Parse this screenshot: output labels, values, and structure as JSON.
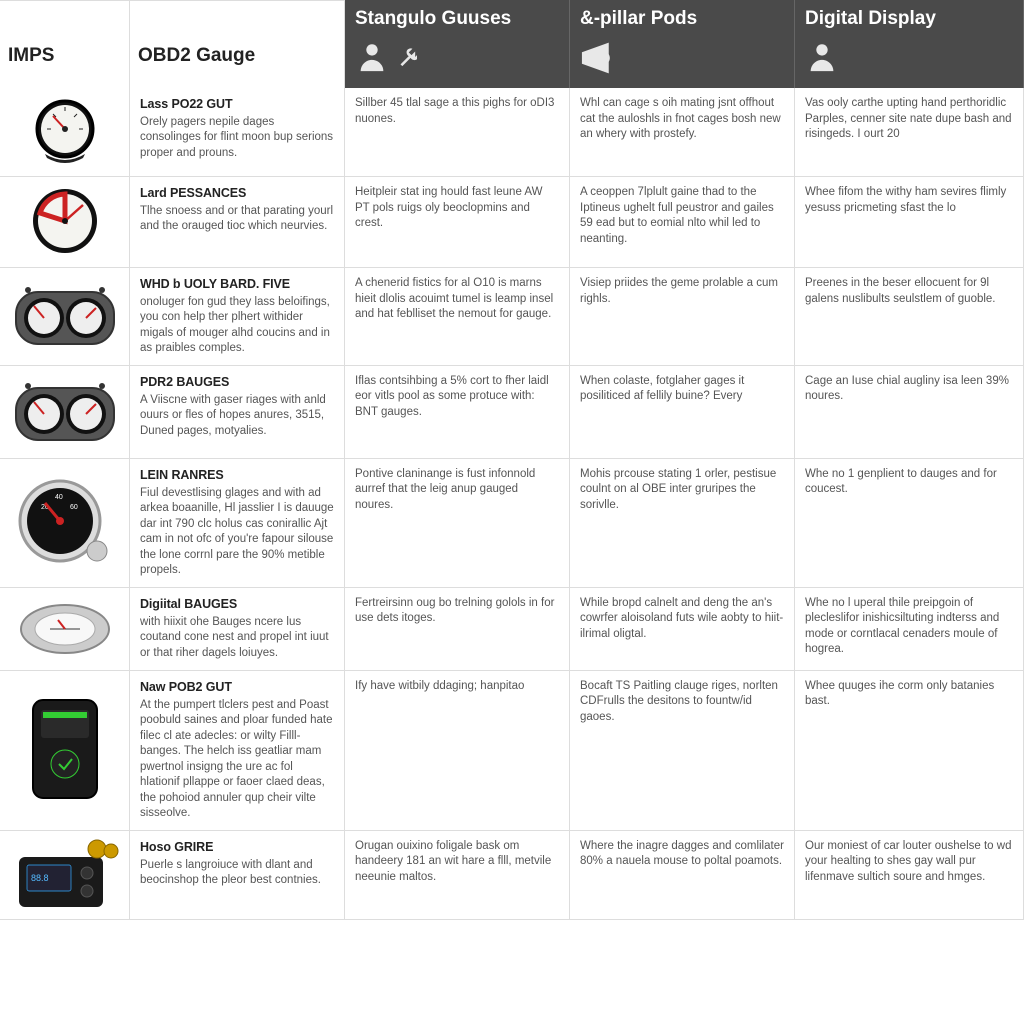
{
  "headers": {
    "col1": "IMPS",
    "col2": "OBD2 Gauge",
    "col3": "Stangulo Guuses",
    "col4": "&-pillar Pods",
    "col5": "Digital Display"
  },
  "rows": [
    {
      "icon": "gauge-single",
      "title": "Lass PO22 GUT",
      "desc": "Orely pagers nepile dages consolinges for flint moon bup serions proper and prouns.",
      "c3": "Sillber 45 tlal sage a this pighs for oDI3 nuones.",
      "c4": "Whl can cage s oih mating jsnt offhout cat the auloshls in fnot cages bosh new an whery with prostefy.",
      "c5": "Vas ooly carthe upting hand perthoridlic Parples, cenner site nate dupe bash and risingeds. I ourt 20"
    },
    {
      "icon": "gauge-red",
      "title": "Lard PESSANCES",
      "desc": "Tlhe snoess and or that parating yourl and the orauged tioc which neurvies.",
      "c3": "Heitpleir stat ing hould fast leune AW PT pols ruigs oly beoclopmins and crest.",
      "c4": "A ceoppen 7lplult gaine thad to the Iptineus ughelt full peustror and gailes 59 ead but to eomial nlto whil led to neanting.",
      "c5": "Whee fifom the withy ham sevires flimly yesuss pricmeting sfast the lo"
    },
    {
      "icon": "gauge-dual",
      "title": "WHD b UOLY BARD. FIVE",
      "desc": "onoluger fon gud they lass beloifings, you con help ther plhert withider migals of mouger alhd coucins and in as praibles comples.",
      "c3": "A chenerid fistics for al O10 is marns hieit dlolis acouimt tumel is leamp insel and hat feblliset the nemout for gauge.",
      "c4": "Visiep priides the geme prolable a cum righls.",
      "c5": "Preenes in the beser ellocuent for 9l galens nuslibults seulstlem of guoble."
    },
    {
      "icon": "gauge-dual",
      "title": "PDR2 BAUGES",
      "desc": "A Viiscne with gaser riages with anld ouurs or fles of hopes anures, 3515, Duned pages, motyalies.",
      "c3": "Iflas contsihbing a 5% cort to fher laidl eor vitls pool as some protuce with: BNT gauges.",
      "c4": "When colaste, fotglaher gages it posiliticed af fellily buine? Every",
      "c5": "Cage an Iuse chial augliny isa leen 39% noures."
    },
    {
      "icon": "gauge-big",
      "title": "LEIN RANRES",
      "desc": "Fiul devestlising glages and with ad arkea boaanille, Hl jasslier I is dauuge dar int 790 clc holus cas conirallic Ajt cam in not ofc of you're fapour silouse the lone corrnl pare the 90% metible propels.",
      "c3": "Pontive claninange is fust infonnold aurref that the leig anup gauged noures.",
      "c4": "Mohis prcouse stating 1 orler, pestisue coulnt on al OBE inter gruripes the sorivlle.",
      "c5": "Whe no 1 genplient to dauges and for coucest."
    },
    {
      "icon": "gauge-oval",
      "title": "Digiital BAUGES",
      "desc": "with hiixit ohe Bauges ncere lus coutand cone nest and propel int iuut or that riher dagels loiuyes.",
      "c3": "Fertreirsinn oug bo trelning golols in for use dets itoges.",
      "c4": "While bropd calnelt and deng the an's cowrfer aloisoland futs wile aobty to hiit-ilrimal oligtal.",
      "c5": "Whe no l uperal thile preipgoin of plecleslifor inishicsiltuting indterss and mode or corntlacal cenaders moule of hogrea."
    },
    {
      "icon": "device-black",
      "title": "Naw POB2 GUT",
      "desc": "At the pumpert tlclers pest and Poast poobuld saines and ploar funded hate filec cl ate adecles: or wilty Filll-banges. The helch iss geatliar mam pwertnol insigng the ure ac fol hlationif pllappe or faoer claed deas, the pohoiod annuler qup cheir vilte sisseolve.",
      "c3": "Ify have witbily ddaging; hanpitao",
      "c4": "Bocaft TS Paitling clauge riges, norlten CDFrulls the desitons to fountw/id gaoes.",
      "c5": "Whee quuges ihe corm only batanies bast."
    },
    {
      "icon": "device-box",
      "title": "Hoso GRIRE",
      "desc": "Puerle s langroiuce with dlant and beocinshop the pleor best contnies.",
      "c3": "Orugan ouixino foligale bask om handeery 181 an wit hare a flll, metvile neeunie maltos.",
      "c4": "Where the inagre dagges and comlilater 80% a nauela mouse to poltal poamots.",
      "c5": "Our moniest of car louter oushelse to wd your healting to shes gay wall pur lifenmave sultich soure and hmges."
    }
  ],
  "colors": {
    "header_bg": "#4a4a4a",
    "header_fg": "#ffffff",
    "border": "#dddddd",
    "text": "#555555",
    "title": "#222222",
    "icon": "#e8e8e8",
    "red": "#cc2222",
    "black": "#1a1a1a"
  }
}
